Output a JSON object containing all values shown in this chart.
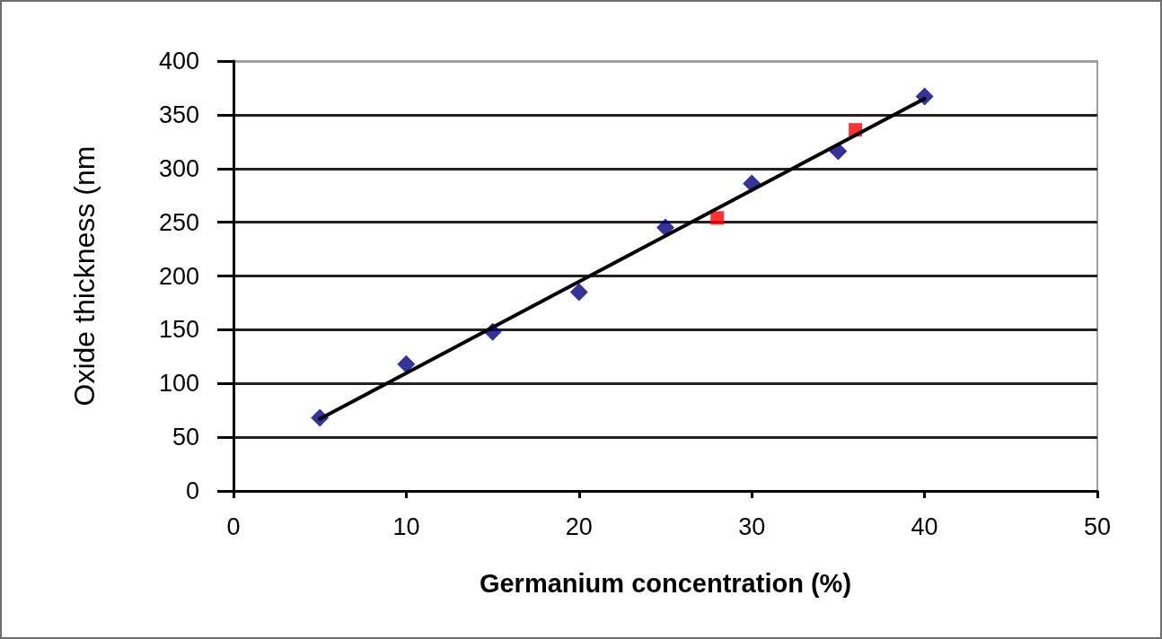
{
  "chart_data": {
    "type": "scatter",
    "xlabel": "Germanium concentration (%)",
    "ylabel": "Oxide thickness (nm",
    "xlim": [
      0,
      50
    ],
    "xticks": [
      0,
      10,
      20,
      30,
      40,
      50
    ],
    "ylim": [
      0,
      400
    ],
    "yticks": [
      0,
      50,
      100,
      150,
      200,
      250,
      300,
      350,
      400
    ],
    "grid": "y",
    "series": [
      {
        "color": "#000080",
        "marker": "diamond",
        "x": [
          5,
          10,
          15,
          20,
          25,
          30,
          35,
          40
        ],
        "values": [
          68,
          118,
          148,
          185,
          245,
          286,
          316,
          367
        ]
      },
      {
        "color": "#ff0000",
        "marker": "square",
        "x": [
          28,
          36
        ],
        "values": [
          254,
          336
        ]
      },
      {
        "type": "line",
        "color": "#000000",
        "marker": "none",
        "line_style": "solid",
        "x": [
          5,
          40
        ],
        "values": [
          67,
          365
        ]
      }
    ]
  }
}
